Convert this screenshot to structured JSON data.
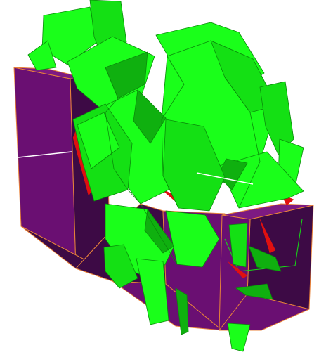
{
  "viewport": {
    "background": "#ffffff"
  },
  "scene": {
    "description_kind": "3d-wireframe-render",
    "palette": {
      "box_face_dark": "#3d0a45",
      "box_face_mid": "#6a0f72",
      "box_face_light": "#7d1a82",
      "box_edge": "#e8823a",
      "shard_bright": "#1aff1a",
      "shard_mid": "#14e014",
      "shard_dark": "#0fb00f",
      "shard_edge": "#0a8a0a",
      "shard_back": "#e01010",
      "highlight_line": "#ffffff"
    }
  }
}
